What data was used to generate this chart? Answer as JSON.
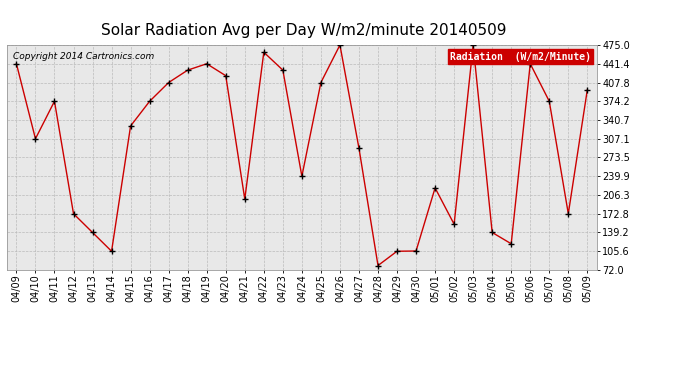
{
  "title": "Solar Radiation Avg per Day W/m2/minute 20140509",
  "copyright": "Copyright 2014 Cartronics.com",
  "legend_label": "Radiation  (W/m2/Minute)",
  "x_labels": [
    "04/09",
    "04/10",
    "04/11",
    "04/12",
    "04/13",
    "04/14",
    "04/15",
    "04/16",
    "04/17",
    "04/18",
    "04/19",
    "04/20",
    "04/21",
    "04/22",
    "04/23",
    "04/24",
    "04/25",
    "04/26",
    "04/27",
    "04/28",
    "04/29",
    "04/30",
    "05/01",
    "05/02",
    "05/03",
    "05/04",
    "05/05",
    "05/06",
    "05/07",
    "05/08",
    "05/09"
  ],
  "y_values": [
    441.4,
    307.1,
    374.2,
    172.8,
    139.2,
    105.6,
    330.0,
    374.2,
    407.8,
    430.0,
    441.4,
    420.0,
    199.0,
    462.0,
    430.0,
    239.9,
    407.8,
    475.0,
    290.0,
    80.0,
    105.6,
    106.0,
    219.0,
    154.0,
    475.0,
    139.2,
    119.0,
    441.4,
    374.2,
    172.8,
    395.0
  ],
  "y_ticks": [
    72.0,
    105.6,
    139.2,
    172.8,
    206.3,
    239.9,
    273.5,
    307.1,
    340.7,
    374.2,
    407.8,
    441.4,
    475.0
  ],
  "y_min": 72.0,
  "y_max": 475.0,
  "line_color": "#cc0000",
  "marker_color": "#000000",
  "bg_color": "#ffffff",
  "plot_bg_color": "#e8e8e8",
  "grid_color": "#bbbbbb",
  "title_fontsize": 11,
  "axis_fontsize": 7,
  "legend_bg": "#cc0000",
  "legend_fg": "#ffffff"
}
